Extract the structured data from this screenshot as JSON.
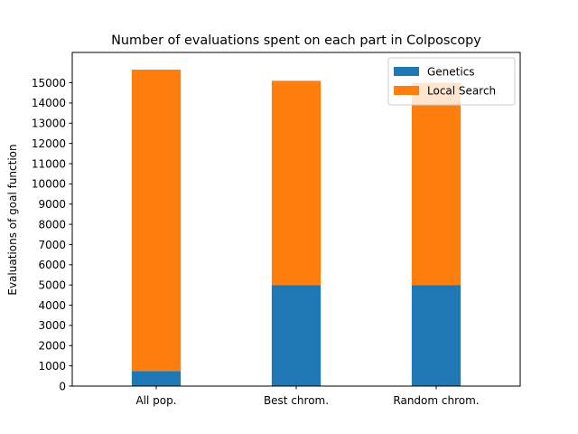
{
  "chart_data": {
    "type": "bar",
    "stacked": true,
    "title": "Number of evaluations spent on each part in Colposcopy",
    "xlabel": "",
    "ylabel": "Evaluations of goal function",
    "categories": [
      "All pop.",
      "Best chrom.",
      "Random chrom."
    ],
    "series": [
      {
        "name": "Genetics",
        "color": "#1f77b4",
        "values": [
          750,
          5000,
          5000
        ]
      },
      {
        "name": "Local Search",
        "color": "#ff7f0e",
        "values": [
          14900,
          10100,
          10000
        ]
      }
    ],
    "ylim": [
      0,
      16500
    ],
    "yticks": [
      "0",
      "1000",
      "2000",
      "3000",
      "4000",
      "5000",
      "6000",
      "7000",
      "8000",
      "9000",
      "10000",
      "11000",
      "12000",
      "13000",
      "14000",
      "15000"
    ],
    "grid": false,
    "legend_position": "top-right"
  }
}
